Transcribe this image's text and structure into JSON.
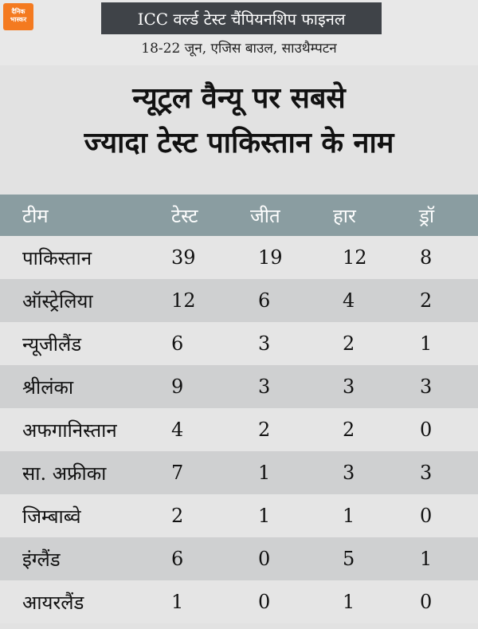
{
  "brand": {
    "logo_line1": "दैनिक",
    "logo_line2": "भास्कर",
    "logo_color": "#f47a20"
  },
  "event": {
    "title": "ICC वर्ल्ड टेस्ट चैंपियनशिप फाइनल",
    "subtitle": "18-22 जून, एजिस बाउल, साउथैम्पटन"
  },
  "headline": {
    "line1": "न्यूट्रल वैन्यू पर सबसे",
    "line2": "ज्यादा टेस्ट पाकिस्तान के नाम"
  },
  "table": {
    "headers": [
      "टीम",
      "टेस्ट",
      "जीत",
      "हार",
      "ड्रॉ"
    ],
    "header_color": "#8a9da1",
    "rows": [
      [
        "पाकिस्तान",
        "39",
        "19",
        "12",
        "8"
      ],
      [
        "ऑस्ट्रेलिया",
        "12",
        "6",
        "4",
        "2"
      ],
      [
        "न्यूजीलैंड",
        "6",
        "3",
        "2",
        "1"
      ],
      [
        "श्रीलंका",
        "9",
        "3",
        "3",
        "3"
      ],
      [
        "अफगानिस्तान",
        "4",
        "2",
        "2",
        "0"
      ],
      [
        "सा. अफ्रीका",
        "7",
        "1",
        "3",
        "3"
      ],
      [
        "जिम्बाब्वे",
        "2",
        "1",
        "1",
        "0"
      ],
      [
        "इंग्लैंड",
        "6",
        "0",
        "5",
        "1"
      ],
      [
        "आयरलैंड",
        "1",
        "0",
        "1",
        "0"
      ]
    ]
  }
}
